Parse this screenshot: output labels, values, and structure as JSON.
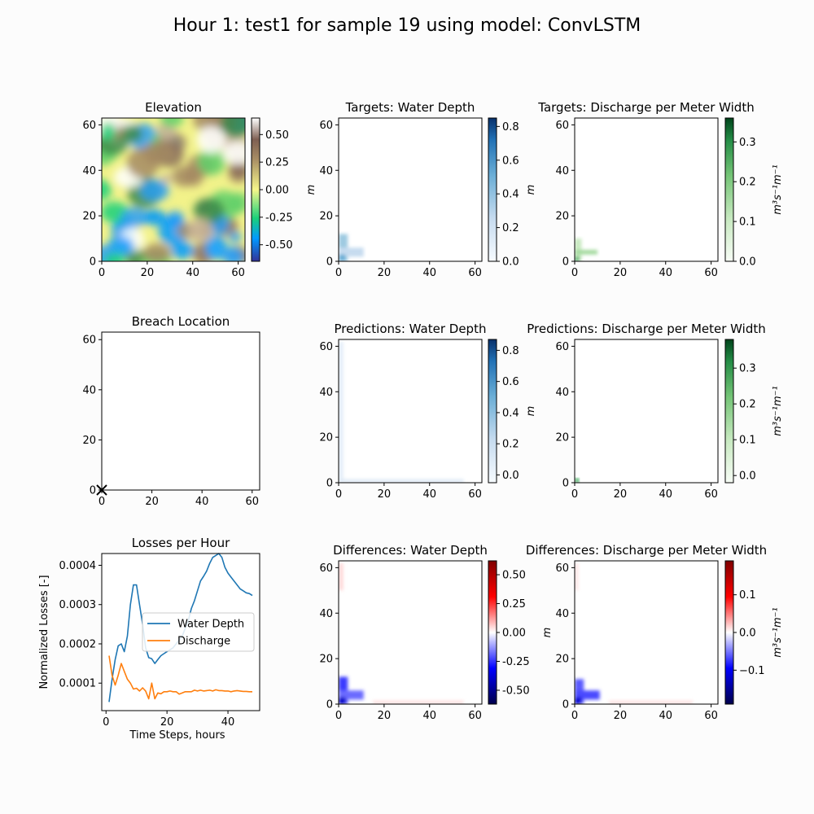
{
  "figure_title": "Hour 1: test1 for sample 19 using model: ConvLSTM",
  "colors": {
    "background": "#fcfcfc",
    "water_depth": "#1f77b4",
    "discharge": "#ff7f0e"
  },
  "chart_data": [
    {
      "id": "elevation",
      "type": "heatmap",
      "title": "Elevation",
      "xlabel": "",
      "ylabel": "",
      "xlim": [
        0,
        63
      ],
      "ylim": [
        0,
        63
      ],
      "xticks": [
        "0",
        "20",
        "40",
        "60"
      ],
      "yticks": [
        "0",
        "20",
        "40",
        "60"
      ],
      "colormap": "terrain",
      "colorbar": {
        "label": "",
        "range": [
          -0.65,
          0.65
        ],
        "ticks": [
          "-0.50",
          "-0.25",
          "0.00",
          "0.25",
          "0.50"
        ],
        "tick_values": [
          -0.5,
          -0.25,
          0,
          0.25,
          0.5
        ]
      }
    },
    {
      "id": "targets-water-depth",
      "type": "heatmap",
      "title": "Targets: Water Depth",
      "xlabel": "",
      "ylabel": "m",
      "xlim": [
        0,
        63
      ],
      "ylim": [
        0,
        63
      ],
      "xticks": [
        "0",
        "20",
        "40",
        "60"
      ],
      "yticks": [
        "0",
        "20",
        "40",
        "60"
      ],
      "colormap": "Blues",
      "colorbar": {
        "label": "m",
        "range": [
          0,
          0.85
        ],
        "ticks": [
          "0.0",
          "0.2",
          "0.4",
          "0.6",
          "0.8"
        ],
        "tick_values": [
          0,
          0.2,
          0.4,
          0.6,
          0.8
        ]
      }
    },
    {
      "id": "targets-discharge",
      "type": "heatmap",
      "title": "Targets: Discharge per Meter Width",
      "xlabel": "",
      "ylabel": "",
      "xlim": [
        0,
        63
      ],
      "ylim": [
        0,
        63
      ],
      "xticks": [
        "0",
        "20",
        "40",
        "60"
      ],
      "yticks": [
        "0",
        "20",
        "40",
        "60"
      ],
      "colormap": "Greens",
      "colorbar": {
        "label": "m³s⁻¹m⁻¹",
        "range": [
          0,
          0.36
        ],
        "ticks": [
          "0.0",
          "0.1",
          "0.2",
          "0.3"
        ],
        "tick_values": [
          0,
          0.1,
          0.2,
          0.3
        ]
      }
    },
    {
      "id": "breach-location",
      "type": "scatter",
      "title": "Breach Location",
      "xlabel": "",
      "ylabel": "",
      "xlim": [
        0,
        63
      ],
      "ylim": [
        0,
        63
      ],
      "xticks": [
        "0",
        "20",
        "40",
        "60"
      ],
      "yticks": [
        "0",
        "20",
        "40",
        "60"
      ],
      "points": [
        {
          "x": 0,
          "y": 0,
          "marker": "x"
        }
      ]
    },
    {
      "id": "predictions-water-depth",
      "type": "heatmap",
      "title": "Predictions: Water Depth",
      "xlabel": "",
      "ylabel": "",
      "xlim": [
        0,
        63
      ],
      "ylim": [
        0,
        63
      ],
      "xticks": [
        "0",
        "20",
        "40",
        "60"
      ],
      "yticks": [
        "0",
        "20",
        "40",
        "60"
      ],
      "colormap": "Blues",
      "colorbar": {
        "label": "m",
        "range": [
          -0.05,
          0.87
        ],
        "ticks": [
          "0.0",
          "0.2",
          "0.4",
          "0.6",
          "0.8"
        ],
        "tick_values": [
          0,
          0.2,
          0.4,
          0.6,
          0.8
        ]
      }
    },
    {
      "id": "predictions-discharge",
      "type": "heatmap",
      "title": "Predictions: Discharge per Meter Width",
      "xlabel": "",
      "ylabel": "",
      "xlim": [
        0,
        63
      ],
      "ylim": [
        0,
        63
      ],
      "xticks": [
        "0",
        "20",
        "40",
        "60"
      ],
      "yticks": [
        "0",
        "20",
        "40",
        "60"
      ],
      "colormap": "Greens",
      "colorbar": {
        "label": "m³s⁻¹m⁻¹",
        "range": [
          -0.02,
          0.38
        ],
        "ticks": [
          "0.0",
          "0.1",
          "0.2",
          "0.3"
        ],
        "tick_values": [
          0,
          0.1,
          0.2,
          0.3
        ]
      }
    },
    {
      "id": "losses-per-hour",
      "type": "line",
      "title": "Losses per Hour",
      "xlabel": "Time Steps, hours",
      "ylabel": "Normalized Losses [-]",
      "xlim": [
        -1.4,
        50.4
      ],
      "ylim": [
        3e-05,
        0.00043
      ],
      "xticks": [
        "0",
        "20",
        "40"
      ],
      "xtick_values": [
        0,
        20,
        40
      ],
      "yticks": [
        "0.0001",
        "0.0002",
        "0.0003",
        "0.0004"
      ],
      "ytick_values": [
        0.0001,
        0.0002,
        0.0003,
        0.0004
      ],
      "legend": "center-right",
      "series": [
        {
          "name": "Water Depth",
          "color": "#1f77b4",
          "x": [
            1,
            2,
            3,
            4,
            5,
            6,
            7,
            8,
            9,
            10,
            11,
            12,
            13,
            14,
            15,
            16,
            17,
            18,
            19,
            20,
            21,
            22,
            23,
            24,
            25,
            26,
            27,
            28,
            29,
            30,
            31,
            32,
            33,
            34,
            35,
            36,
            37,
            38,
            39,
            40,
            41,
            42,
            43,
            44,
            45,
            46,
            47,
            48
          ],
          "values": [
            5.2e-05,
            0.00011,
            0.00016,
            0.000195,
            0.0002,
            0.00018,
            0.00022,
            0.0003,
            0.00035,
            0.00035,
            0.0003,
            0.00025,
            0.00019,
            0.000165,
            0.000162,
            0.00015,
            0.00016,
            0.00017,
            0.000175,
            0.00018,
            0.000185,
            0.00019,
            0.0002,
            0.00021,
            0.00022,
            0.00024,
            0.00026,
            0.00029,
            0.00031,
            0.000335,
            0.00036,
            0.000372,
            0.000385,
            0.000405,
            0.00042,
            0.000425,
            0.00043,
            0.00042,
            0.000395,
            0.00038,
            0.00037,
            0.00036,
            0.00035,
            0.00034,
            0.000335,
            0.00033,
            0.000328,
            0.000323
          ]
        },
        {
          "name": "Discharge",
          "color": "#ff7f0e",
          "x": [
            1,
            2,
            3,
            4,
            5,
            6,
            7,
            8,
            9,
            10,
            11,
            12,
            13,
            14,
            15,
            16,
            17,
            18,
            19,
            20,
            21,
            22,
            23,
            24,
            25,
            26,
            27,
            28,
            29,
            30,
            31,
            32,
            33,
            34,
            35,
            36,
            37,
            38,
            39,
            40,
            41,
            42,
            43,
            44,
            45,
            46,
            47,
            48
          ],
          "values": [
            0.00017,
            0.00012,
            9.5e-05,
            0.00012,
            0.00015,
            0.00013,
            0.00011,
            0.0001,
            8.5e-05,
            8.7e-05,
            8e-05,
            8.8e-05,
            8e-05,
            6e-05,
            0.0001,
            6e-05,
            7.5e-05,
            7.3e-05,
            7.8e-05,
            7.8e-05,
            8e-05,
            7.8e-05,
            7.8e-05,
            7.2e-05,
            7.5e-05,
            7.8e-05,
            7.8e-05,
            7.8e-05,
            8.2e-05,
            8e-05,
            8.2e-05,
            8e-05,
            8.1e-05,
            8.2e-05,
            8e-05,
            8.3e-05,
            8.1e-05,
            8.1e-05,
            8e-05,
            8e-05,
            7.8e-05,
            8e-05,
            8.1e-05,
            8e-05,
            7.9e-05,
            7.9e-05,
            7.8e-05,
            7.8e-05
          ]
        }
      ]
    },
    {
      "id": "differences-water-depth",
      "type": "heatmap",
      "title": "Differences: Water Depth",
      "xlabel": "",
      "ylabel": "",
      "xlim": [
        0,
        63
      ],
      "ylim": [
        0,
        63
      ],
      "xticks": [
        "0",
        "20",
        "40",
        "60"
      ],
      "yticks": [
        "0",
        "20",
        "40",
        "60"
      ],
      "colormap": "seismic",
      "colorbar": {
        "label": "",
        "range": [
          -0.62,
          0.62
        ],
        "ticks": [
          "-0.50",
          "-0.25",
          "0.00",
          "0.25",
          "0.50"
        ],
        "tick_values": [
          -0.5,
          -0.25,
          0,
          0.25,
          0.5
        ]
      }
    },
    {
      "id": "differences-discharge",
      "type": "heatmap",
      "title": "Differences: Discharge per Meter Width",
      "xlabel": "",
      "ylabel": "m",
      "xlim": [
        0,
        63
      ],
      "ylim": [
        0,
        63
      ],
      "xticks": [
        "0",
        "20",
        "40",
        "60"
      ],
      "yticks": [
        "0",
        "20",
        "40",
        "60"
      ],
      "colormap": "seismic",
      "colorbar": {
        "label": "m³s⁻¹m⁻¹",
        "range": [
          -0.19,
          0.19
        ],
        "ticks": [
          "−0.1",
          "0.0",
          "0.1"
        ],
        "tick_values": [
          -0.1,
          0,
          0.1
        ]
      }
    }
  ]
}
